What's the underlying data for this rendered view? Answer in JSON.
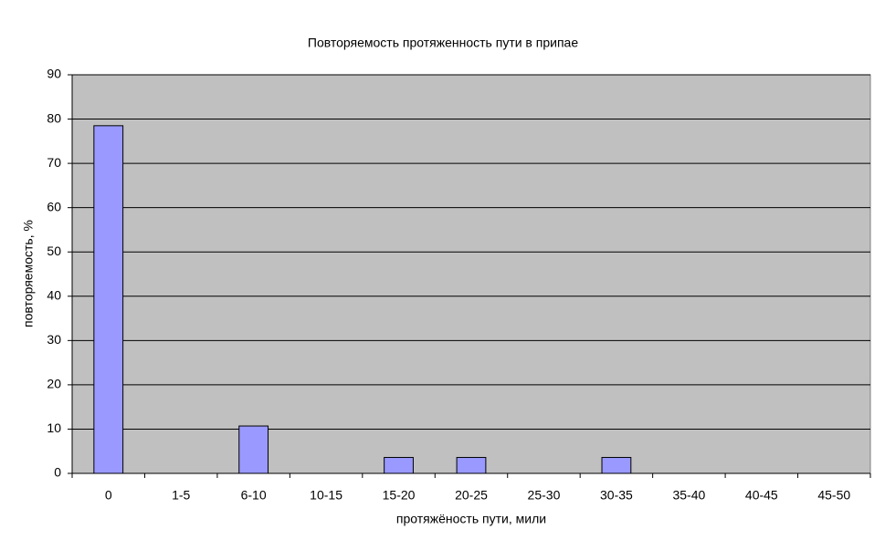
{
  "chart_data": {
    "type": "bar",
    "title": "Повторяемость протяженность пути в припае",
    "x_label": "протяжёность пути, мили",
    "y_label": "повторяемость, %",
    "categories": [
      "0",
      "1-5",
      "6-10",
      "10-15",
      "15-20",
      "20-25",
      "25-30",
      "30-35",
      "35-40",
      "40-45",
      "45-50"
    ],
    "values": [
      78.5,
      0,
      10.7,
      0,
      3.6,
      3.6,
      0,
      3.6,
      0,
      0,
      0
    ],
    "color": "#9999ff",
    "ylim": [
      0,
      90
    ],
    "yticks": [
      0,
      10,
      20,
      30,
      40,
      50,
      60,
      70,
      80,
      90
    ],
    "grid": true
  }
}
